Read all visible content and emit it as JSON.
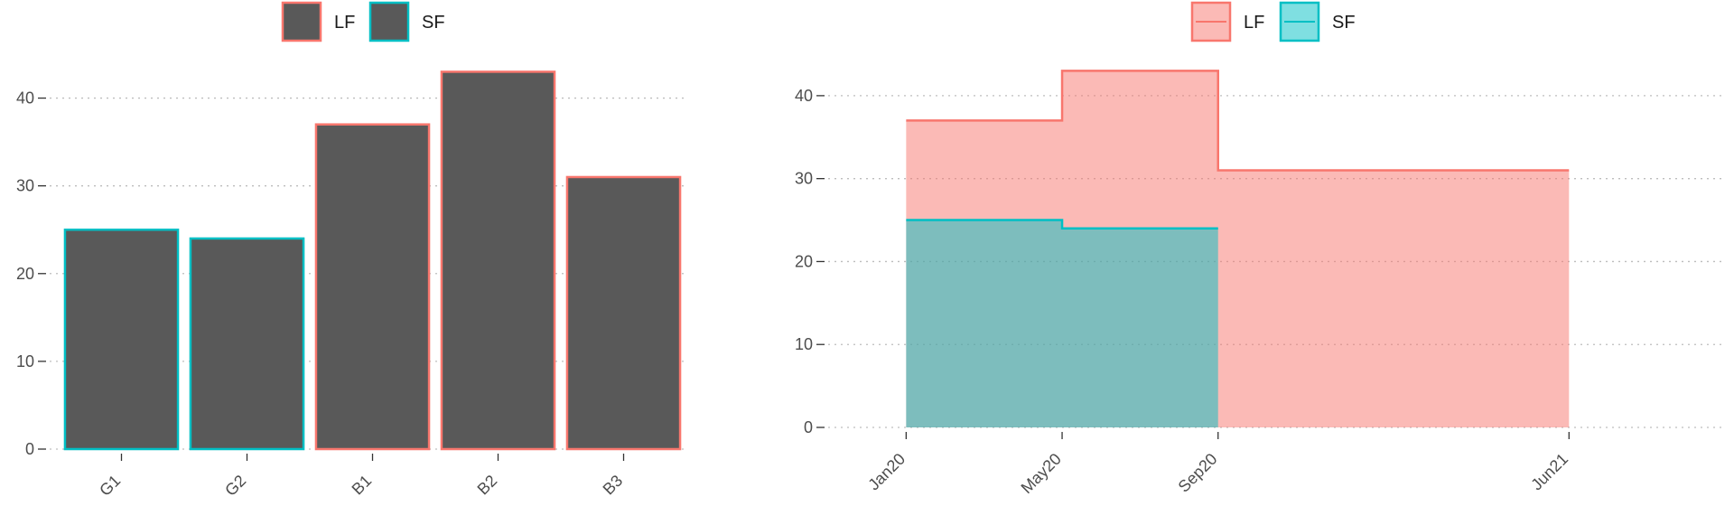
{
  "chart_data": [
    {
      "type": "bar",
      "categories": [
        "G1",
        "G2",
        "B1",
        "B2",
        "B3"
      ],
      "values": [
        25,
        24,
        37,
        43,
        31
      ],
      "groups": [
        "SF",
        "SF",
        "LF",
        "LF",
        "LF"
      ],
      "bar_fill": "#595959",
      "ylim": [
        0,
        45
      ],
      "yticks": [
        0,
        10,
        20,
        30,
        40
      ],
      "grid": "horizontal-dotted",
      "legend": {
        "placement": "top",
        "style": "outlined-box",
        "items": [
          {
            "label": "LF",
            "color": "#F8766D"
          },
          {
            "label": "SF",
            "color": "#00BFC4"
          }
        ]
      },
      "title": "",
      "xlabel": "",
      "ylabel": ""
    },
    {
      "type": "area",
      "step": true,
      "x_ticks": [
        "Jan20",
        "May20",
        "Sep20",
        "Jun21"
      ],
      "xlim": [
        "2019-11",
        "2021-10"
      ],
      "ylim": [
        0,
        45
      ],
      "yticks": [
        0,
        10,
        20,
        30,
        40
      ],
      "grid": "horizontal-dotted",
      "series": [
        {
          "name": "LF",
          "color": "#F8766D",
          "fill": "#F8766D",
          "fill_opacity": 0.5,
          "points": [
            {
              "x": "2020-01",
              "y": 37
            },
            {
              "x": "2020-05",
              "y": 43
            },
            {
              "x": "2020-09",
              "y": 31
            },
            {
              "x": "2021-06",
              "y": 31
            }
          ]
        },
        {
          "name": "SF",
          "color": "#00BFC4",
          "fill": "#00BFC4",
          "fill_opacity": 0.5,
          "points": [
            {
              "x": "2020-01",
              "y": 25
            },
            {
              "x": "2020-05",
              "y": 24
            },
            {
              "x": "2020-09",
              "y": 24
            }
          ]
        }
      ],
      "legend": {
        "placement": "top",
        "style": "filled-box",
        "items": [
          {
            "label": "LF",
            "color": "#F8766D"
          },
          {
            "label": "SF",
            "color": "#00BFC4"
          }
        ]
      },
      "title": "",
      "xlabel": "",
      "ylabel": ""
    }
  ]
}
